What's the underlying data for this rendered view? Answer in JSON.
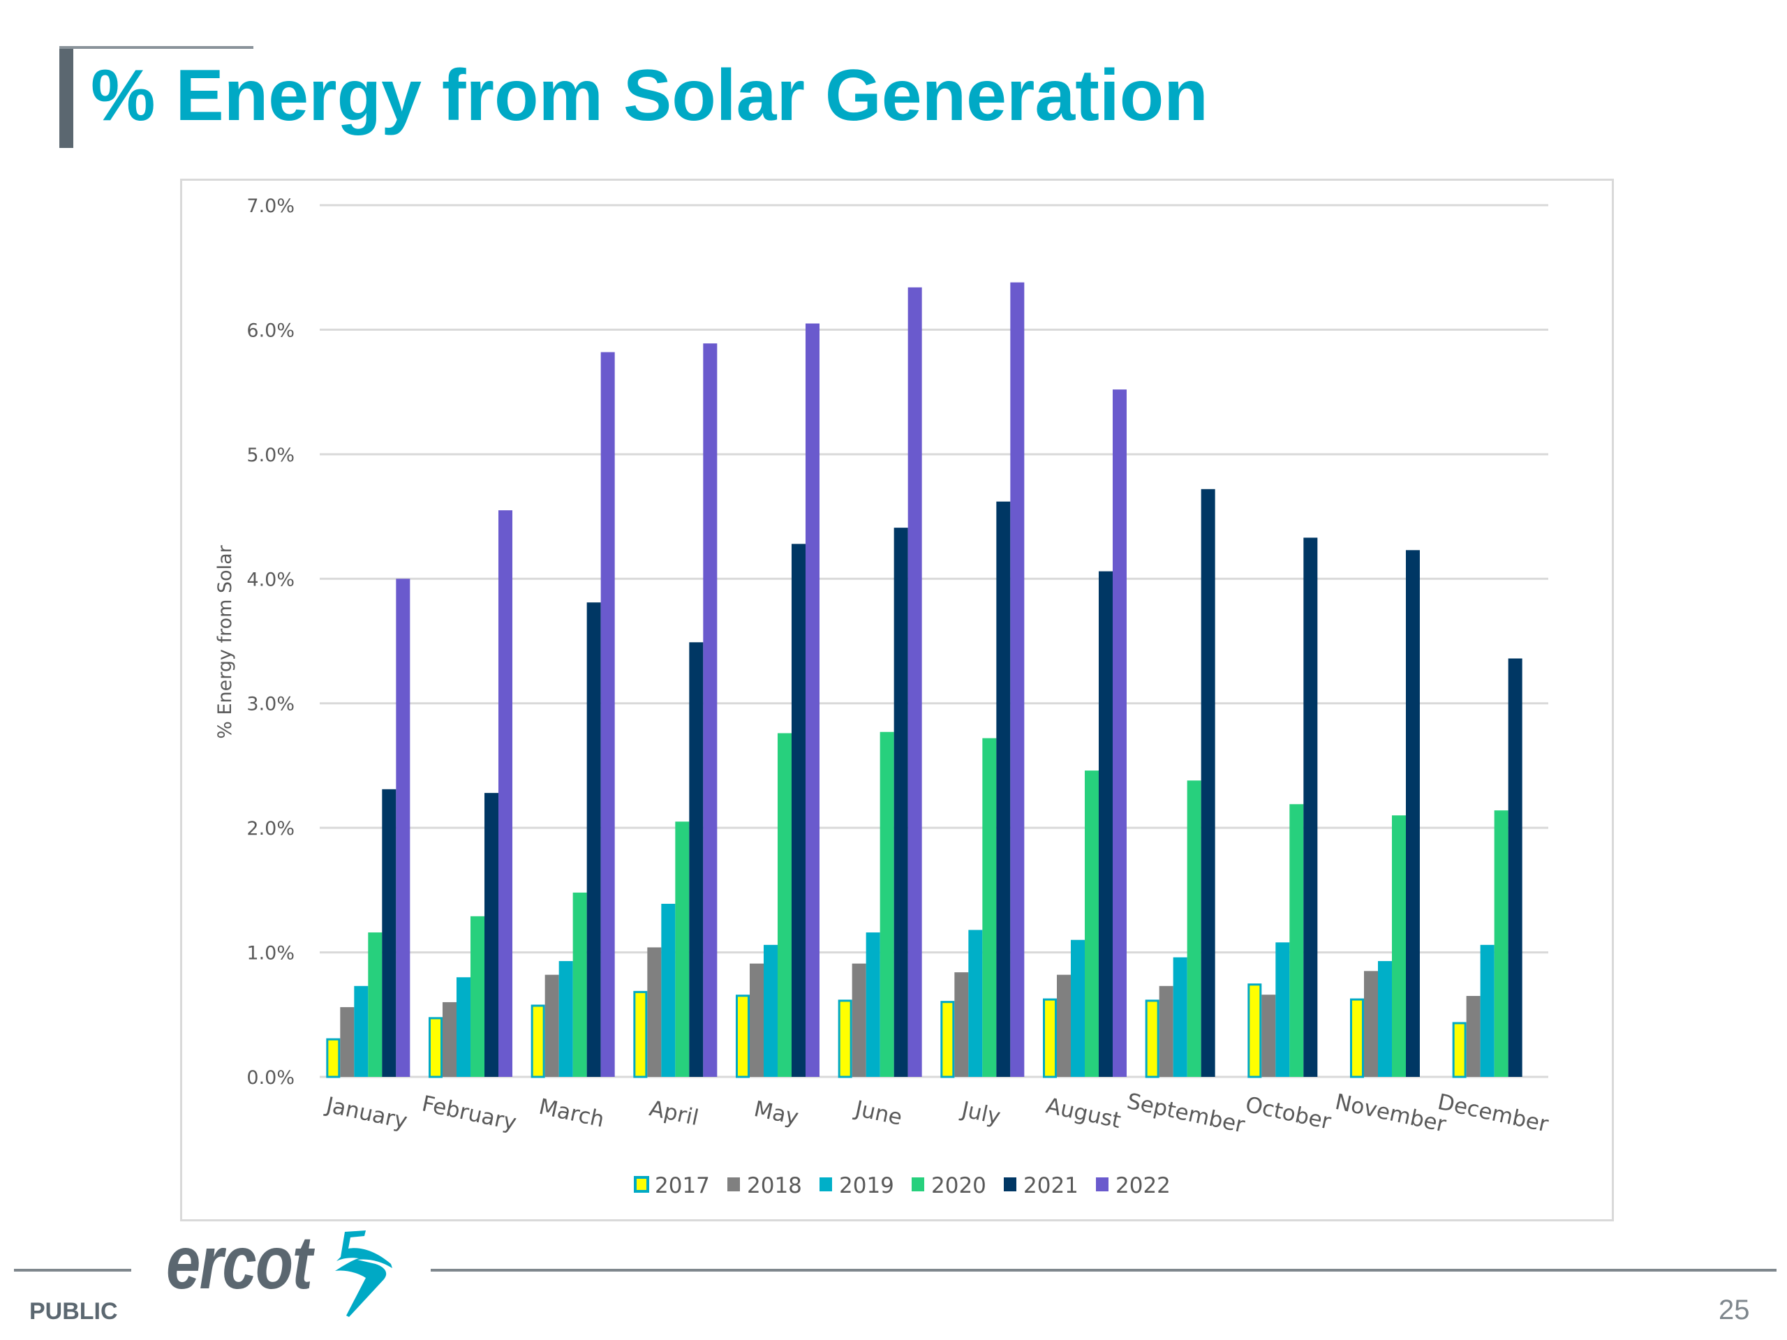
{
  "slide": {
    "title": "% Energy from Solar Generation",
    "footer_label": "PUBLIC",
    "page_number": "25",
    "logo_text": "ercot",
    "colors": {
      "title": "#00a9c5",
      "logo_gray": "#5b6770",
      "logo_accent": "#00a9c5"
    }
  },
  "chart_data": {
    "type": "bar",
    "title": "",
    "xlabel": "",
    "ylabel": "% Energy from Solar",
    "ylim": [
      0,
      7
    ],
    "yticks": [
      "0.0%",
      "1.0%",
      "2.0%",
      "3.0%",
      "4.0%",
      "5.0%",
      "6.0%",
      "7.0%"
    ],
    "grid": true,
    "legend_position": "bottom",
    "categories": [
      "January",
      "February",
      "March",
      "April",
      "May",
      "June",
      "July",
      "August",
      "September",
      "October",
      "November",
      "December"
    ],
    "series": [
      {
        "name": "2017",
        "color": "#ffff00",
        "border": "#00a9c5",
        "values": [
          0.31,
          0.48,
          0.58,
          0.69,
          0.66,
          0.62,
          0.61,
          0.63,
          0.62,
          0.75,
          0.63,
          0.44
        ]
      },
      {
        "name": "2018",
        "color": "#808080",
        "values": [
          0.56,
          0.6,
          0.82,
          1.04,
          0.91,
          0.91,
          0.84,
          0.82,
          0.73,
          0.66,
          0.85,
          0.65
        ]
      },
      {
        "name": "2019",
        "color": "#00afc8",
        "values": [
          0.73,
          0.8,
          0.93,
          1.39,
          1.06,
          1.16,
          1.18,
          1.1,
          0.96,
          1.08,
          0.93,
          1.06
        ]
      },
      {
        "name": "2020",
        "color": "#27d07d",
        "values": [
          1.16,
          1.29,
          1.48,
          2.05,
          2.76,
          2.77,
          2.72,
          2.46,
          2.38,
          2.19,
          2.1,
          2.14
        ]
      },
      {
        "name": "2021",
        "color": "#003764",
        "values": [
          2.31,
          2.28,
          3.81,
          3.49,
          4.28,
          4.41,
          4.62,
          4.06,
          4.72,
          4.33,
          4.23,
          3.36
        ]
      },
      {
        "name": "2022",
        "color": "#6a5acd",
        "values": [
          4.0,
          4.55,
          5.82,
          5.89,
          6.05,
          6.34,
          6.38,
          5.52,
          null,
          null,
          null,
          null
        ]
      }
    ]
  }
}
